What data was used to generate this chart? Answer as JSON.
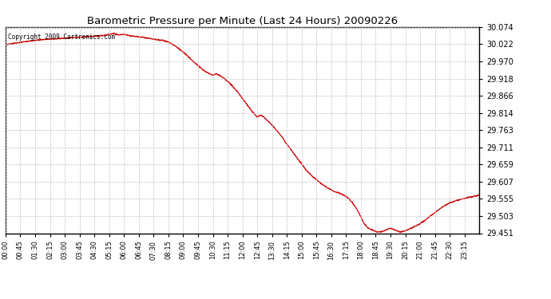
{
  "title": "Barometric Pressure per Minute (Last 24 Hours) 20090226",
  "copyright": "Copyright 2009 Cartronics.com",
  "line_color": "#cc0000",
  "bg_color": "#ffffff",
  "grid_color": "#c0c0c0",
  "yticks": [
    29.451,
    29.503,
    29.555,
    29.607,
    29.659,
    29.711,
    29.763,
    29.814,
    29.866,
    29.918,
    29.97,
    30.022,
    30.074
  ],
  "xtick_labels": [
    "00:00",
    "00:45",
    "01:30",
    "02:15",
    "03:00",
    "03:45",
    "04:30",
    "05:15",
    "06:00",
    "06:45",
    "07:30",
    "08:15",
    "09:00",
    "09:45",
    "10:30",
    "11:15",
    "12:00",
    "12:45",
    "13:30",
    "14:15",
    "15:00",
    "15:45",
    "16:30",
    "17:15",
    "18:00",
    "18:45",
    "19:30",
    "20:15",
    "21:00",
    "21:45",
    "22:30",
    "23:15"
  ],
  "ymin": 29.451,
  "ymax": 30.074,
  "waypoints": [
    [
      0,
      30.02
    ],
    [
      30,
      30.025
    ],
    [
      60,
      30.03
    ],
    [
      90,
      30.033
    ],
    [
      120,
      30.036
    ],
    [
      150,
      30.038
    ],
    [
      180,
      30.04
    ],
    [
      210,
      30.042
    ],
    [
      240,
      30.044
    ],
    [
      270,
      30.046
    ],
    [
      300,
      30.048
    ],
    [
      315,
      30.052
    ],
    [
      330,
      30.054
    ],
    [
      345,
      30.05
    ],
    [
      360,
      30.052
    ],
    [
      375,
      30.048
    ],
    [
      390,
      30.046
    ],
    [
      405,
      30.044
    ],
    [
      420,
      30.042
    ],
    [
      435,
      30.04
    ],
    [
      450,
      30.037
    ],
    [
      465,
      30.035
    ],
    [
      480,
      30.033
    ],
    [
      495,
      30.028
    ],
    [
      510,
      30.02
    ],
    [
      525,
      30.01
    ],
    [
      540,
      29.998
    ],
    [
      555,
      29.985
    ],
    [
      570,
      29.97
    ],
    [
      585,
      29.958
    ],
    [
      600,
      29.945
    ],
    [
      615,
      29.935
    ],
    [
      630,
      29.928
    ],
    [
      640,
      29.932
    ],
    [
      650,
      29.928
    ],
    [
      660,
      29.922
    ],
    [
      675,
      29.91
    ],
    [
      690,
      29.895
    ],
    [
      705,
      29.878
    ],
    [
      720,
      29.858
    ],
    [
      735,
      29.838
    ],
    [
      750,
      29.818
    ],
    [
      765,
      29.802
    ],
    [
      775,
      29.808
    ],
    [
      785,
      29.802
    ],
    [
      795,
      29.792
    ],
    [
      810,
      29.778
    ],
    [
      825,
      29.76
    ],
    [
      840,
      29.742
    ],
    [
      855,
      29.72
    ],
    [
      870,
      29.7
    ],
    [
      885,
      29.68
    ],
    [
      900,
      29.66
    ],
    [
      915,
      29.64
    ],
    [
      930,
      29.625
    ],
    [
      945,
      29.612
    ],
    [
      960,
      29.6
    ],
    [
      975,
      29.59
    ],
    [
      990,
      29.582
    ],
    [
      1000,
      29.576
    ],
    [
      1010,
      29.574
    ],
    [
      1020,
      29.57
    ],
    [
      1030,
      29.565
    ],
    [
      1040,
      29.558
    ],
    [
      1050,
      29.548
    ],
    [
      1060,
      29.535
    ],
    [
      1070,
      29.52
    ],
    [
      1080,
      29.5
    ],
    [
      1090,
      29.48
    ],
    [
      1100,
      29.468
    ],
    [
      1110,
      29.462
    ],
    [
      1120,
      29.458
    ],
    [
      1130,
      29.455
    ],
    [
      1140,
      29.455
    ],
    [
      1150,
      29.458
    ],
    [
      1160,
      29.462
    ],
    [
      1170,
      29.466
    ],
    [
      1180,
      29.462
    ],
    [
      1190,
      29.458
    ],
    [
      1200,
      29.455
    ],
    [
      1215,
      29.458
    ],
    [
      1230,
      29.465
    ],
    [
      1245,
      29.472
    ],
    [
      1260,
      29.48
    ],
    [
      1275,
      29.49
    ],
    [
      1290,
      29.502
    ],
    [
      1305,
      29.514
    ],
    [
      1320,
      29.525
    ],
    [
      1335,
      29.535
    ],
    [
      1350,
      29.542
    ],
    [
      1365,
      29.548
    ],
    [
      1380,
      29.552
    ],
    [
      1395,
      29.556
    ],
    [
      1410,
      29.56
    ],
    [
      1425,
      29.563
    ],
    [
      1440,
      29.566
    ]
  ]
}
